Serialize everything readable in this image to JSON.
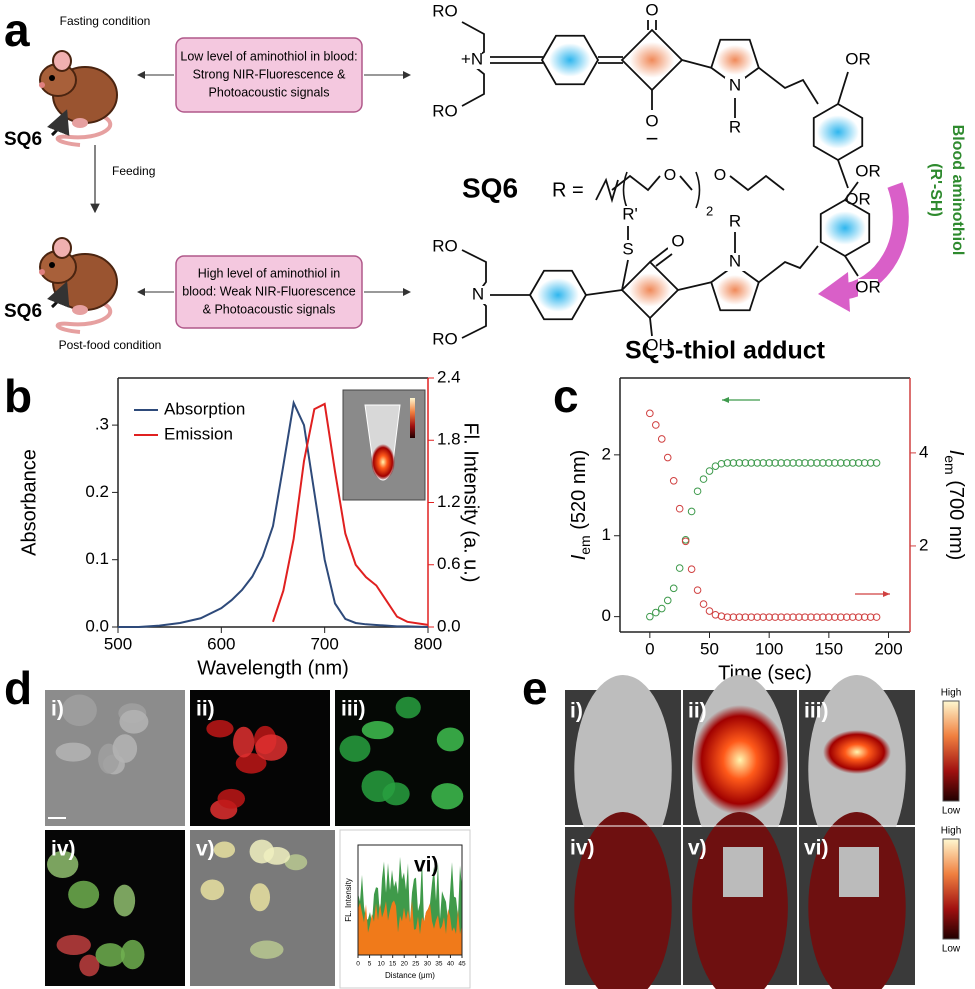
{
  "panel_labels": [
    "a",
    "b",
    "c",
    "d",
    "e"
  ],
  "scheme": {
    "fasting_label": "Fasting condition",
    "post_food_label": "Post-food condition",
    "feeding_label": "Feeding",
    "probe_labels": [
      "SQ6",
      "SQ6"
    ],
    "boxes": [
      [
        "Low level of aminothiol in blood:",
        "Strong NIR-Fluorescence &",
        "Photoacoustic signals"
      ],
      [
        "High level of aminothiol in",
        "blood: Weak NIR-Fluorescence",
        "& Photoacoustic signals"
      ]
    ],
    "top_structure": {
      "name": "SQ6",
      "atoms": [
        "RO",
        "+N",
        "RO",
        "O",
        "O",
        "−",
        "N",
        "R",
        "OR",
        "OR"
      ],
      "r_group": {
        "prefix": "R =",
        "atoms": [
          "O",
          "O"
        ],
        "repeat": "2"
      }
    },
    "bottom_structure": {
      "name": "SQ6-thiol adduct",
      "atoms": [
        "RO",
        "N",
        "RO",
        "R'",
        "S",
        "O",
        "OH",
        "N",
        "R",
        "OR",
        "OR"
      ]
    },
    "reagent": {
      "name": "Blood aminothiol",
      "formula": "(R'-SH)"
    }
  },
  "chart_data": [
    {
      "type": "line",
      "x_label": "Wavelength (nm)",
      "y_label": "Absorbance",
      "y2_label": "Fl. Intensity (a. u.)",
      "x": [
        500,
        520,
        540,
        560,
        580,
        600,
        610,
        620,
        630,
        640,
        650,
        660,
        670,
        680,
        690,
        700,
        710,
        720,
        730,
        740,
        750,
        760,
        770,
        780,
        800
      ],
      "xlim": [
        500,
        800
      ],
      "xticks": [
        500,
        600,
        700,
        800
      ],
      "ylim": [
        0,
        0.37
      ],
      "yticks": [
        {
          "value": 0,
          "label": "0.0"
        },
        0.1,
        0.2,
        {
          "value": 0.3,
          "label": ".3"
        }
      ],
      "y2lim": [
        0,
        2.4
      ],
      "y2ticks": [
        {
          "value": 0,
          "label": "0.0"
        },
        0.6,
        1.2,
        1.8,
        2.4
      ],
      "y2_axis_color": "#e02020",
      "legend": "upper left",
      "series": [
        {
          "name": "Absorption",
          "color": "#2e4a7a",
          "values": [
            0,
            0,
            0.002,
            0.006,
            0.013,
            0.028,
            0.04,
            0.055,
            0.075,
            0.105,
            0.15,
            0.24,
            0.333,
            0.3,
            0.2,
            0.1,
            0.035,
            0.012,
            0.006,
            0.004,
            0.003,
            0.002,
            0.001,
            0.001,
            0
          ]
        },
        {
          "name": "Emission",
          "color": "#e02020",
          "axis": "y2",
          "values": [
            null,
            null,
            null,
            null,
            null,
            null,
            null,
            null,
            null,
            null,
            0.05,
            0.35,
            0.85,
            1.6,
            2.1,
            2.15,
            1.5,
            0.9,
            0.6,
            0.48,
            0.4,
            0.25,
            0.1,
            0.05,
            0.02
          ]
        }
      ]
    },
    {
      "type": "scatter",
      "x_label": "Time (sec)",
      "y_label": {
        "symbol": "I",
        "subscript": "em",
        "unit": "(520 nm)"
      },
      "y2_label": {
        "symbol": "I",
        "subscript": "em",
        "unit": "(700 nm)"
      },
      "x": [
        0,
        5,
        10,
        15,
        20,
        25,
        30,
        35,
        40,
        45,
        50,
        55,
        60,
        65,
        70,
        75,
        80,
        85,
        90,
        95,
        100,
        105,
        110,
        115,
        120,
        125,
        130,
        135,
        140,
        145,
        150,
        155,
        160,
        165,
        170,
        175,
        180,
        185,
        190
      ],
      "xlim": [
        -25,
        218
      ],
      "xticks": [
        0,
        50,
        100,
        150,
        200
      ],
      "ylim": [
        -0.19,
        2.95
      ],
      "yticks": [
        0,
        1,
        2
      ],
      "y2lim": [
        0.15,
        5.61
      ],
      "y2ticks": [
        2,
        4
      ],
      "y2_axis_color": "#d04040",
      "series": [
        {
          "color": "#3e9a4c",
          "values": [
            0,
            0.05,
            0.1,
            0.2,
            0.35,
            0.6,
            0.95,
            1.3,
            1.55,
            1.7,
            1.8,
            1.86,
            1.89,
            1.9,
            1.9,
            1.9,
            1.9,
            1.9,
            1.9,
            1.9,
            1.9,
            1.9,
            1.9,
            1.9,
            1.9,
            1.9,
            1.9,
            1.9,
            1.9,
            1.9,
            1.9,
            1.9,
            1.9,
            1.9,
            1.9,
            1.9,
            1.9,
            1.9,
            1.9
          ]
        },
        {
          "color": "#d04040",
          "axis": "y2",
          "values": [
            4.85,
            4.6,
            4.3,
            3.9,
            3.4,
            2.8,
            2.1,
            1.5,
            1.05,
            0.75,
            0.6,
            0.52,
            0.49,
            0.47,
            0.47,
            0.47,
            0.47,
            0.47,
            0.47,
            0.47,
            0.47,
            0.47,
            0.47,
            0.47,
            0.47,
            0.47,
            0.47,
            0.47,
            0.47,
            0.47,
            0.47,
            0.47,
            0.47,
            0.47,
            0.47,
            0.47,
            0.47,
            0.47,
            0.47
          ]
        }
      ]
    }
  ],
  "panel_d": {
    "image_labels": [
      "i)",
      "ii)",
      "iii)",
      "iv)",
      "v)"
    ],
    "plot": {
      "label": "vi)",
      "y_label": "FL. Intensity",
      "x_label": "Distance (μm)",
      "xlim": [
        0,
        45
      ],
      "xticks": [
        0,
        5,
        10,
        15,
        20,
        25,
        30,
        35,
        40,
        45
      ]
    }
  },
  "panel_e": {
    "image_labels": [
      "i)",
      "ii)",
      "iii)",
      "iv)",
      "v)",
      "vi)"
    ],
    "colorbar_labels": [
      [
        "High",
        "Low"
      ],
      [
        "High",
        "Low"
      ]
    ]
  }
}
